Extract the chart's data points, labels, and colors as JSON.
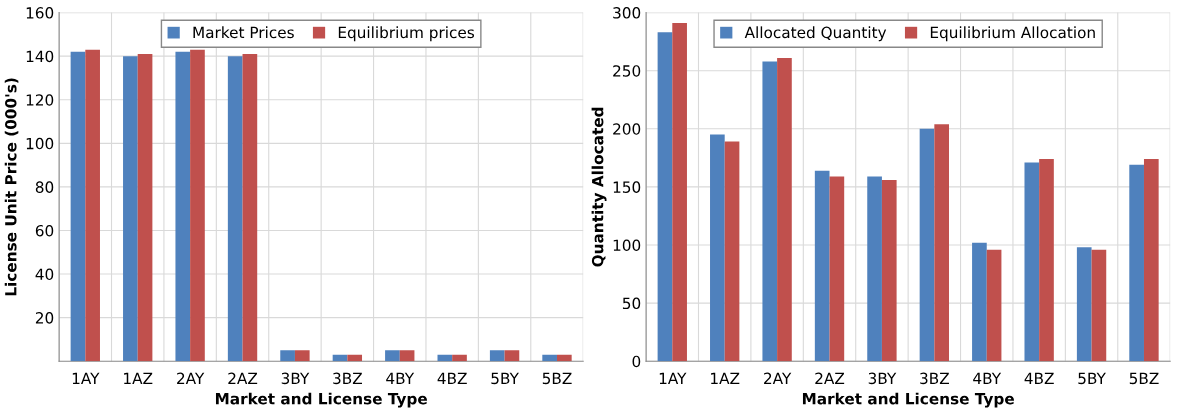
{
  "chart_data": [
    {
      "type": "bar",
      "xlabel": "Market and License Type",
      "ylabel": "License Unit Price (000's)",
      "categories": [
        "1AY",
        "1AZ",
        "2AY",
        "2AZ",
        "3BY",
        "3BZ",
        "4BY",
        "4BZ",
        "5BY",
        "5BZ"
      ],
      "series": [
        {
          "name": "Market Prices",
          "color": "#4f81bd",
          "values": [
            142,
            140,
            142,
            140,
            5,
            3,
            5,
            3,
            5,
            3
          ]
        },
        {
          "name": "Equilibrium prices",
          "color": "#c0504d",
          "values": [
            143,
            141,
            143,
            141,
            5,
            3,
            5,
            3,
            5,
            3
          ]
        }
      ],
      "ylim": [
        0,
        160
      ],
      "yticks": [
        20,
        40,
        60,
        80,
        100,
        120,
        140,
        160
      ],
      "grid": true,
      "legend": "top"
    },
    {
      "type": "bar",
      "xlabel": "Market and License Type",
      "ylabel": "Quantity Allocated",
      "categories": [
        "1AY",
        "1AZ",
        "2AY",
        "2AZ",
        "3BY",
        "3BZ",
        "4BY",
        "4BZ",
        "5BY",
        "5BZ"
      ],
      "series": [
        {
          "name": "Allocated Quantity",
          "color": "#4f81bd",
          "values": [
            283,
            195,
            258,
            164,
            159,
            200,
            102,
            171,
            98,
            169
          ]
        },
        {
          "name": "Equilibrium Allocation",
          "color": "#c0504d",
          "values": [
            291,
            189,
            261,
            159,
            156,
            204,
            96,
            174,
            96,
            174
          ]
        }
      ],
      "ylim": [
        0,
        300
      ],
      "yticks": [
        0,
        50,
        100,
        150,
        200,
        250,
        300
      ],
      "grid": true,
      "legend": "top"
    }
  ]
}
